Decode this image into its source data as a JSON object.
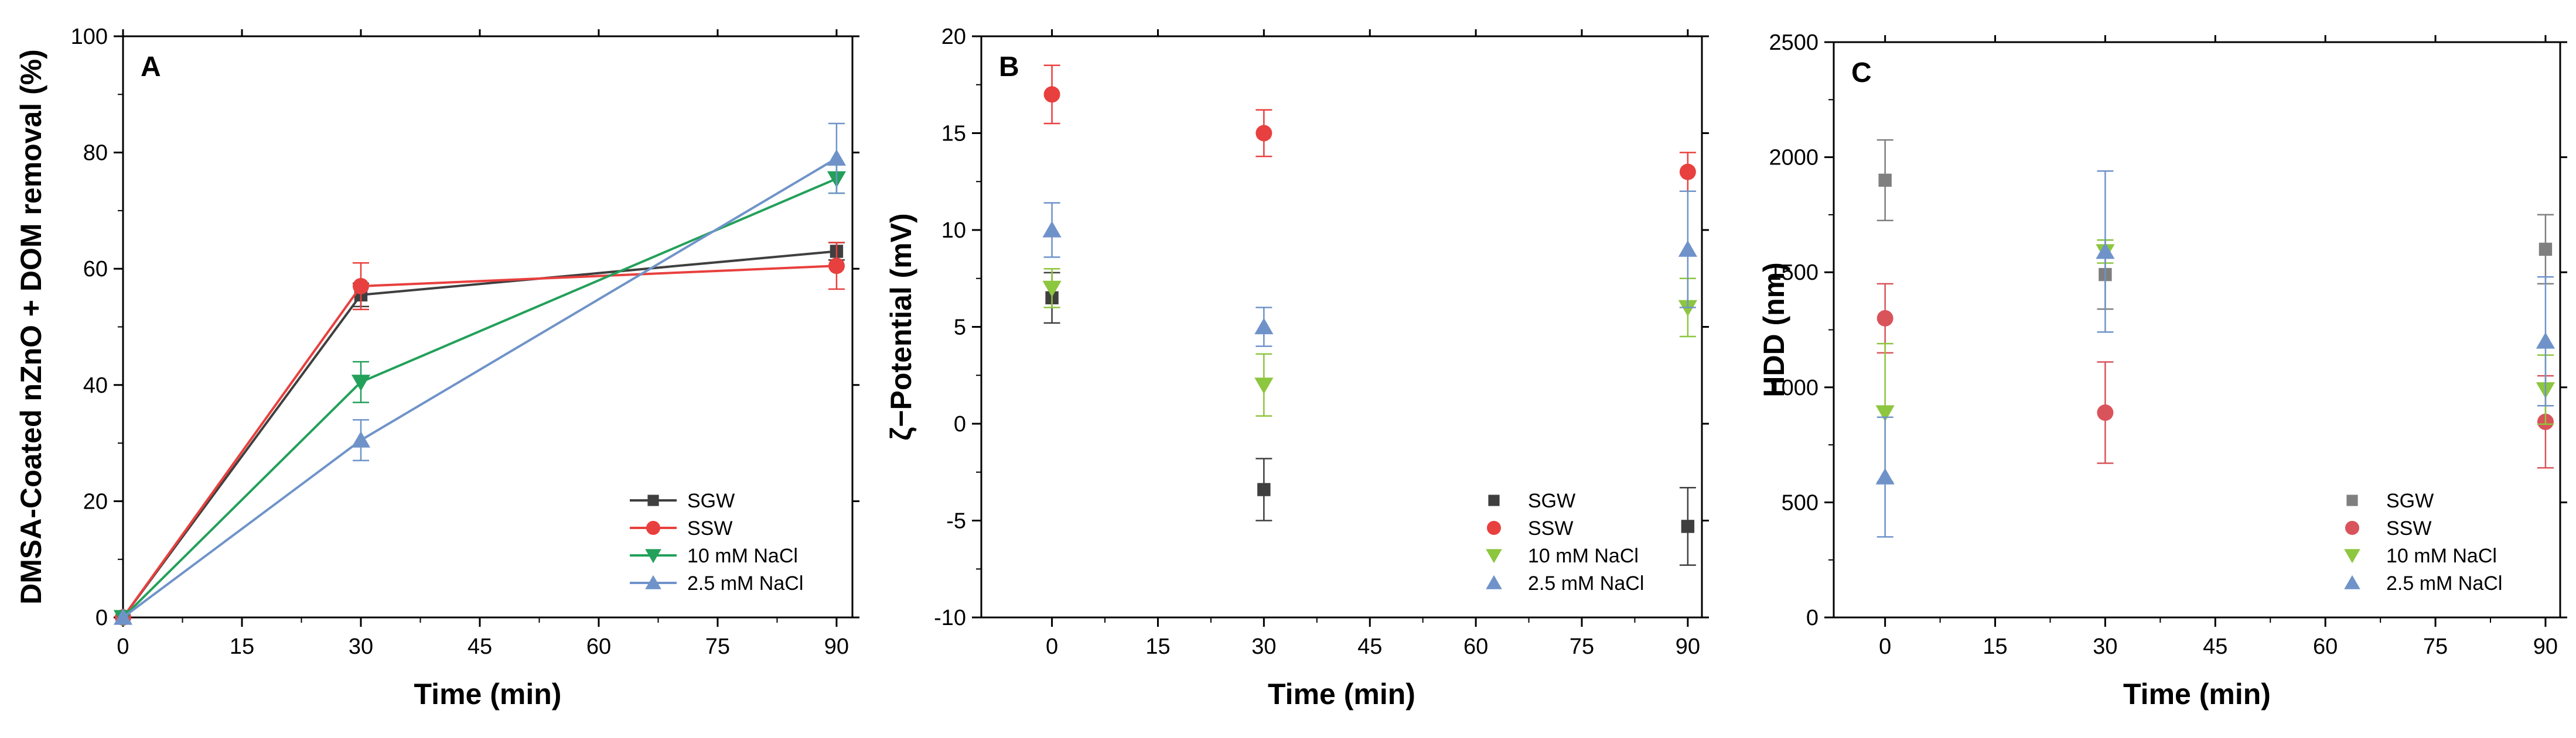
{
  "chart_data": [
    {
      "type": "line",
      "panel_label": "A",
      "xlabel": "Time (min)",
      "ylabel": "DMSA-Coated nZnO + DOM removal (%)",
      "xlim": [
        0,
        92
      ],
      "ylim": [
        0,
        100
      ],
      "xticks": [
        0,
        15,
        30,
        45,
        60,
        75,
        90
      ],
      "yticks": [
        0,
        20,
        40,
        60,
        80,
        100
      ],
      "legend_position": "bottom-right",
      "series": [
        {
          "name": "SGW",
          "color": "#3f3f3f",
          "marker": "square",
          "x": [
            0,
            30,
            90
          ],
          "y": [
            0,
            55.5,
            63
          ],
          "err": [
            0,
            2,
            1.5
          ]
        },
        {
          "name": "SSW",
          "color": "#e8403e",
          "marker": "circle",
          "x": [
            0,
            30,
            90
          ],
          "y": [
            0,
            57,
            60.5
          ],
          "err": [
            0,
            4,
            4
          ]
        },
        {
          "name": "10 mM NaCl",
          "color": "#23a05a",
          "marker": "triangle-down",
          "x": [
            0,
            30,
            90
          ],
          "y": [
            0,
            40.5,
            75.5
          ],
          "err": [
            0,
            3.5,
            2.5
          ]
        },
        {
          "name": "2.5 mM NaCl",
          "color": "#6f93c9",
          "marker": "triangle-up",
          "x": [
            0,
            30,
            90
          ],
          "y": [
            0,
            30.5,
            79
          ],
          "err": [
            0,
            3.5,
            6
          ]
        }
      ]
    },
    {
      "type": "scatter",
      "panel_label": "B",
      "xlabel": "Time (min)",
      "ylabel": "ζ−Potential (mV)",
      "xlim": [
        -10,
        92
      ],
      "ylim": [
        -10,
        20
      ],
      "xticks": [
        0,
        15,
        30,
        45,
        60,
        75,
        90
      ],
      "yticks": [
        -10,
        -5,
        0,
        5,
        10,
        15,
        20
      ],
      "legend_position": "bottom-right",
      "series": [
        {
          "name": "SGW",
          "color": "#3f3f3f",
          "marker": "square",
          "x": [
            0,
            30,
            90
          ],
          "y": [
            6.5,
            -3.4,
            -5.3
          ],
          "err": [
            1.3,
            1.6,
            2
          ]
        },
        {
          "name": "SSW",
          "color": "#e8403e",
          "marker": "circle",
          "x": [
            0,
            30,
            90
          ],
          "y": [
            17,
            15,
            13
          ],
          "err": [
            1.5,
            1.2,
            1
          ]
        },
        {
          "name": "10 mM NaCl",
          "color": "#8dc63f",
          "marker": "triangle-down",
          "x": [
            0,
            30,
            90
          ],
          "y": [
            7,
            2,
            6
          ],
          "err": [
            1,
            1.6,
            1.5
          ]
        },
        {
          "name": "2.5 mM NaCl",
          "color": "#6f93c9",
          "marker": "triangle-up",
          "x": [
            0,
            30,
            90
          ],
          "y": [
            10,
            5,
            9
          ],
          "err": [
            1.4,
            1,
            3
          ]
        }
      ]
    },
    {
      "type": "scatter",
      "panel_label": "C",
      "xlabel": "Time (min)",
      "ylabel": "HDD (nm)",
      "xlim": [
        -7,
        92
      ],
      "ylim": [
        0,
        2500
      ],
      "xticks": [
        0,
        15,
        30,
        45,
        60,
        75,
        90
      ],
      "yticks": [
        0,
        500,
        1000,
        1500,
        2000,
        2500
      ],
      "legend_position": "bottom-right",
      "series": [
        {
          "name": "SGW",
          "color": "#7f7f7f",
          "marker": "square",
          "x": [
            0,
            30,
            90
          ],
          "y": [
            1900,
            1490,
            1600
          ],
          "err": [
            175,
            150,
            150
          ]
        },
        {
          "name": "SSW",
          "color": "#d9535a",
          "marker": "circle",
          "x": [
            0,
            30,
            90
          ],
          "y": [
            1300,
            890,
            850
          ],
          "err": [
            150,
            220,
            200
          ]
        },
        {
          "name": "10 mM NaCl",
          "color": "#8dc63f",
          "marker": "triangle-down",
          "x": [
            0,
            30,
            90
          ],
          "y": [
            890,
            1590,
            990
          ],
          "err": [
            300,
            50,
            150
          ]
        },
        {
          "name": "2.5 mM NaCl",
          "color": "#6f93c9",
          "marker": "triangle-up",
          "x": [
            0,
            30,
            90
          ],
          "y": [
            610,
            1590,
            1200
          ],
          "err": [
            260,
            350,
            280
          ]
        }
      ]
    }
  ]
}
